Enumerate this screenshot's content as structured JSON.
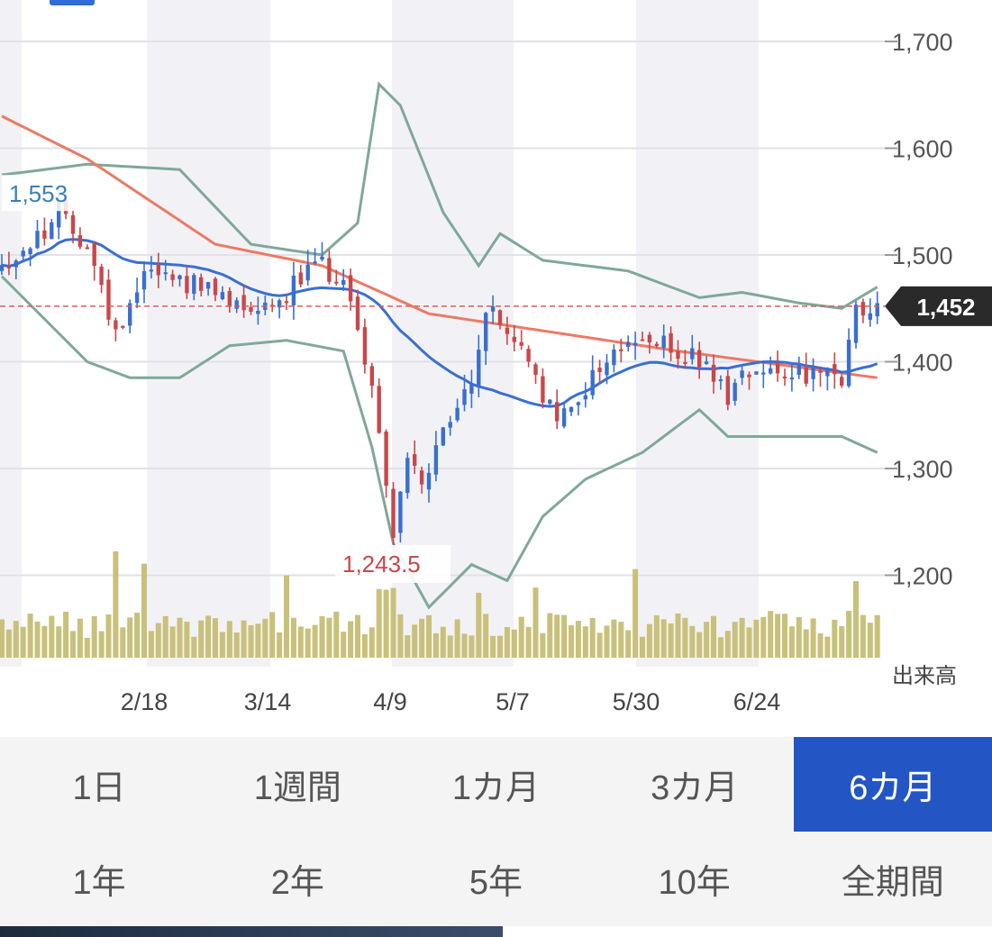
{
  "chart_data": {
    "type": "candlestick",
    "y_ticks": [
      "1,700",
      "1,600",
      "1,500",
      "1,400",
      "1,300",
      "1,200"
    ],
    "y_tick_values": [
      1700,
      1600,
      1500,
      1400,
      1300,
      1200
    ],
    "ylim": [
      1135,
      1720
    ],
    "x_ticks": [
      "2/18",
      "3/14",
      "4/9",
      "5/7",
      "5/30",
      "6/24"
    ],
    "volume_label": "出来高",
    "current_price_label": "1,452",
    "current_price": 1452,
    "high_label": "1,553",
    "high_value": 1553,
    "low_label": "1,243.5",
    "low_value": 1243.5,
    "series": [
      {
        "key": "ma_short",
        "color": "#3a6fd1"
      },
      {
        "key": "ma_long",
        "color": "#ec7a64"
      },
      {
        "key": "bollinger",
        "color": "#7fa898"
      }
    ],
    "colors": {
      "up": "#3a6fd1",
      "down": "#c9474a",
      "volume": "#c9c07a",
      "band_shade": "#f2f2f6",
      "price_line": "#e05a5a"
    }
  },
  "ranges": {
    "row1": [
      "1日",
      "1週間",
      "1カ月",
      "3カ月",
      "6カ月"
    ],
    "row2": [
      "1年",
      "2年",
      "5年",
      "10年",
      "全期間"
    ],
    "active": "6カ月"
  }
}
